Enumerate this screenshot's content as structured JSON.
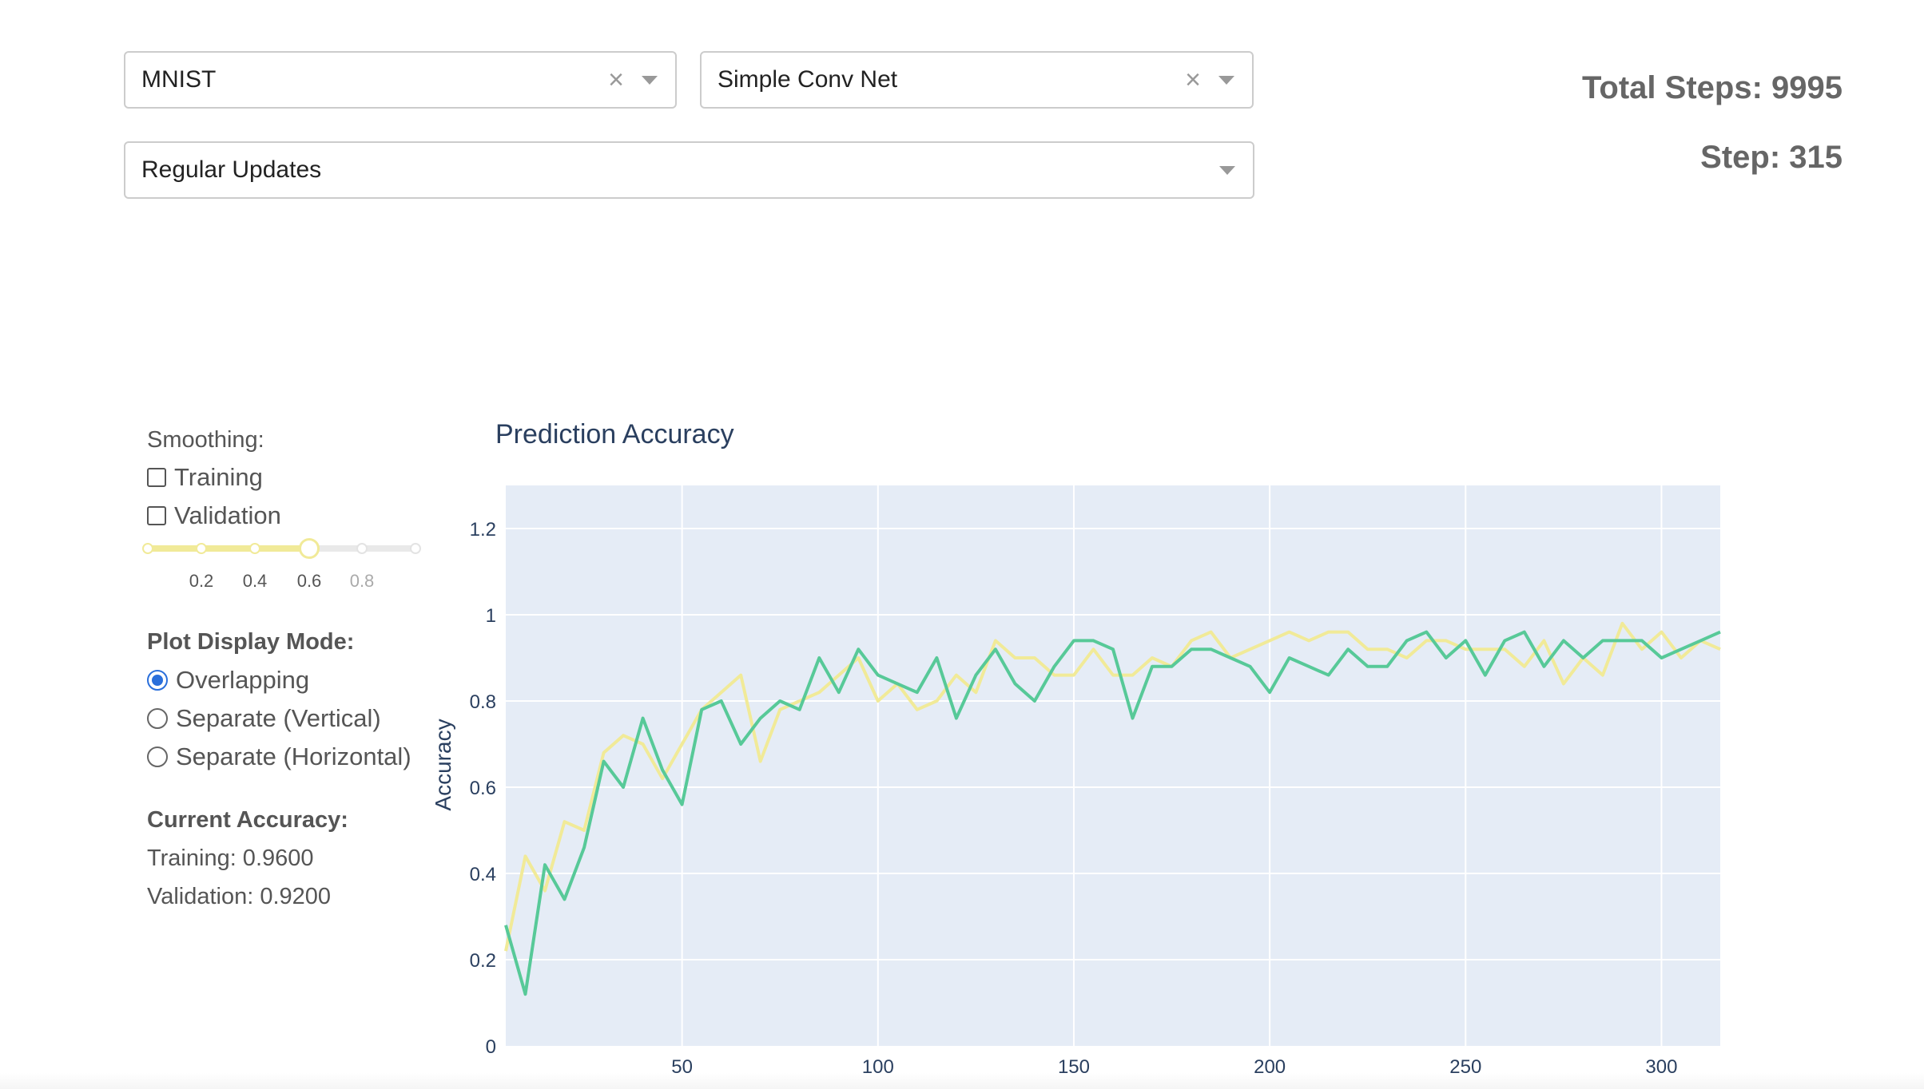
{
  "selectors": {
    "dataset": {
      "value": "MNIST",
      "clear_icon": "close-icon",
      "arrow_icon": "chevron-down-icon"
    },
    "model": {
      "value": "Simple Conv Net",
      "clear_icon": "close-icon",
      "arrow_icon": "chevron-down-icon"
    },
    "update_mode": {
      "value": "Regular Updates",
      "arrow_icon": "chevron-down-icon"
    }
  },
  "stats": {
    "total_steps": "Total Steps: 9995",
    "step": "Step: 315"
  },
  "smoothing": {
    "label": "Smoothing:",
    "training": {
      "label": "Training",
      "checked": false
    },
    "validation": {
      "label": "Validation",
      "checked": false
    },
    "slider": {
      "value": 0.6,
      "min": 0,
      "max": 1,
      "marks": [
        "0.2",
        "0.4",
        "0.6",
        "0.8"
      ]
    }
  },
  "display_mode": {
    "label": "Plot Display Mode:",
    "options": [
      "Overlapping",
      "Separate (Vertical)",
      "Separate (Horizontal)"
    ],
    "selected": "Overlapping"
  },
  "current_accuracy": {
    "label": "Current Accuracy:",
    "training": "Training: 0.9600",
    "validation": "Validation: 0.9200"
  },
  "colors": {
    "training_line": "#57c998",
    "validation_line": "#f1ea98",
    "plot_bg": "#e5ecf6",
    "radio_selected": "#2a6fdb"
  },
  "chart_data": {
    "type": "line",
    "title": "Prediction Accuracy",
    "xlabel": "",
    "ylabel": "Accuracy",
    "xlim": [
      5,
      315
    ],
    "ylim": [
      0,
      1.3
    ],
    "xticks": [
      50,
      100,
      150,
      200,
      250,
      300
    ],
    "yticks": [
      0,
      0.2,
      0.4,
      0.6,
      0.8,
      1,
      1.2
    ],
    "grid": true,
    "legend": "none",
    "series": [
      {
        "color": "#57c998",
        "x": [
          5,
          10,
          15,
          20,
          25,
          30,
          35,
          40,
          45,
          50,
          55,
          60,
          65,
          70,
          75,
          80,
          85,
          90,
          95,
          100,
          105,
          110,
          115,
          120,
          125,
          130,
          135,
          140,
          145,
          150,
          155,
          160,
          165,
          170,
          175,
          180,
          185,
          190,
          195,
          200,
          205,
          210,
          215,
          220,
          225,
          230,
          235,
          240,
          245,
          250,
          255,
          260,
          265,
          270,
          275,
          280,
          285,
          290,
          295,
          300,
          305,
          310,
          315
        ],
        "y": [
          0.28,
          0.12,
          0.42,
          0.34,
          0.46,
          0.66,
          0.6,
          0.76,
          0.64,
          0.56,
          0.78,
          0.8,
          0.7,
          0.76,
          0.8,
          0.78,
          0.9,
          0.82,
          0.92,
          0.86,
          0.84,
          0.82,
          0.9,
          0.76,
          0.86,
          0.92,
          0.84,
          0.8,
          0.88,
          0.94,
          0.94,
          0.92,
          0.76,
          0.88,
          0.88,
          0.92,
          0.92,
          0.9,
          0.88,
          0.82,
          0.9,
          0.88,
          0.86,
          0.92,
          0.88,
          0.88,
          0.94,
          0.96,
          0.9,
          0.94,
          0.86,
          0.94,
          0.96,
          0.88,
          0.94,
          0.9,
          0.94,
          0.94,
          0.94,
          0.9,
          0.92,
          0.94,
          0.96
        ]
      },
      {
        "color": "#f1ea98",
        "x": [
          5,
          10,
          15,
          20,
          25,
          30,
          35,
          40,
          45,
          50,
          55,
          60,
          65,
          70,
          75,
          80,
          85,
          90,
          95,
          100,
          105,
          110,
          115,
          120,
          125,
          130,
          135,
          140,
          145,
          150,
          155,
          160,
          165,
          170,
          175,
          180,
          185,
          190,
          195,
          200,
          205,
          210,
          215,
          220,
          225,
          230,
          235,
          240,
          245,
          250,
          255,
          260,
          265,
          270,
          275,
          280,
          285,
          290,
          295,
          300,
          305,
          310,
          315
        ],
        "y": [
          0.22,
          0.44,
          0.36,
          0.52,
          0.5,
          0.68,
          0.72,
          0.7,
          0.62,
          0.7,
          0.78,
          0.82,
          0.86,
          0.66,
          0.78,
          0.8,
          0.82,
          0.86,
          0.9,
          0.8,
          0.84,
          0.78,
          0.8,
          0.86,
          0.82,
          0.94,
          0.9,
          0.9,
          0.86,
          0.86,
          0.92,
          0.86,
          0.86,
          0.9,
          0.88,
          0.94,
          0.96,
          0.9,
          0.92,
          0.94,
          0.96,
          0.94,
          0.96,
          0.96,
          0.92,
          0.92,
          0.9,
          0.94,
          0.94,
          0.92,
          0.92,
          0.92,
          0.88,
          0.94,
          0.84,
          0.9,
          0.86,
          0.98,
          0.92,
          0.96,
          0.9,
          0.94,
          0.92
        ]
      }
    ]
  }
}
